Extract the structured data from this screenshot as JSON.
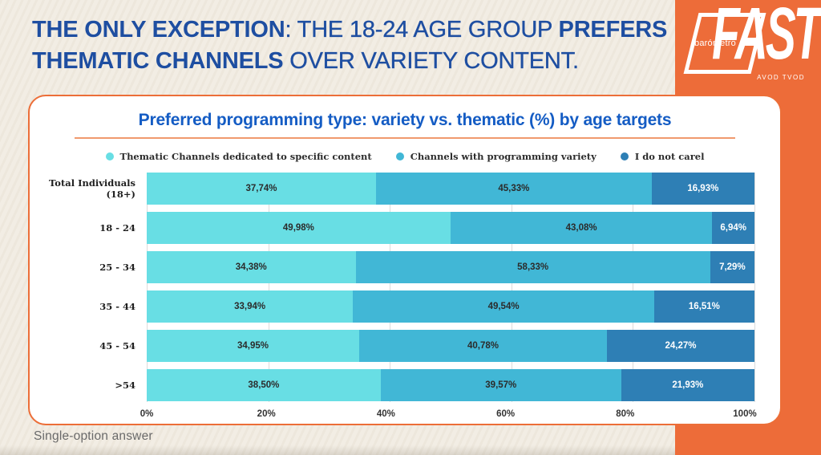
{
  "headline": {
    "color": "#1E4EA1",
    "lines": [
      [
        {
          "text": "THE ONLY EXCEPTION",
          "bold": true
        },
        {
          "text": ": THE 18-24 AGE GROUP ",
          "bold": false
        },
        {
          "text": "PREFERS",
          "bold": true
        }
      ],
      [
        {
          "text": "THEMATIC CHANNELS",
          "bold": true
        },
        {
          "text": " OVER VARIETY CONTENT.",
          "bold": false
        }
      ]
    ]
  },
  "logo": {
    "small_label": "barómetro",
    "brand": "FAST",
    "sub_label": "AVOD TVOD",
    "background_color": "#ED6C39"
  },
  "card": {
    "chart_title": "Preferred programming type: variety vs. thematic (%) by age targets",
    "border_color": "#EC6E38"
  },
  "footnote": "Single-option answer",
  "chart_data": {
    "type": "bar",
    "orientation": "horizontal",
    "stacked": true,
    "title": "Preferred programming type: variety vs. thematic (%) by age targets",
    "categories": [
      "Total Individuals (18+)",
      "18 - 24",
      "25 - 34",
      "35 - 44",
      "45 - 54",
      ">54"
    ],
    "series": [
      {
        "name": "Thematic Channels dedicated to specific content",
        "color": "#68DEE4",
        "label_color": "#2B2B2B",
        "values": [
          37.74,
          49.98,
          34.38,
          33.94,
          34.95,
          38.5
        ]
      },
      {
        "name": "Channels with programming variety",
        "color": "#41B7D6",
        "label_color": "#2B2B2B",
        "values": [
          45.33,
          43.08,
          58.33,
          49.54,
          40.78,
          39.57
        ]
      },
      {
        "name": "I do not carel",
        "color": "#2E7FB5",
        "label_color": "#FFFFFF",
        "values": [
          16.93,
          6.94,
          7.29,
          16.51,
          24.27,
          21.93
        ]
      }
    ],
    "value_label_format": "comma-decimal-percent",
    "x_ticks": [
      "0%",
      "20%",
      "40%",
      "60%",
      "80%",
      "100%"
    ],
    "xlim": [
      0,
      100
    ],
    "legend_position": "top",
    "grid": true,
    "gridline_color": "#DBDBDB"
  }
}
